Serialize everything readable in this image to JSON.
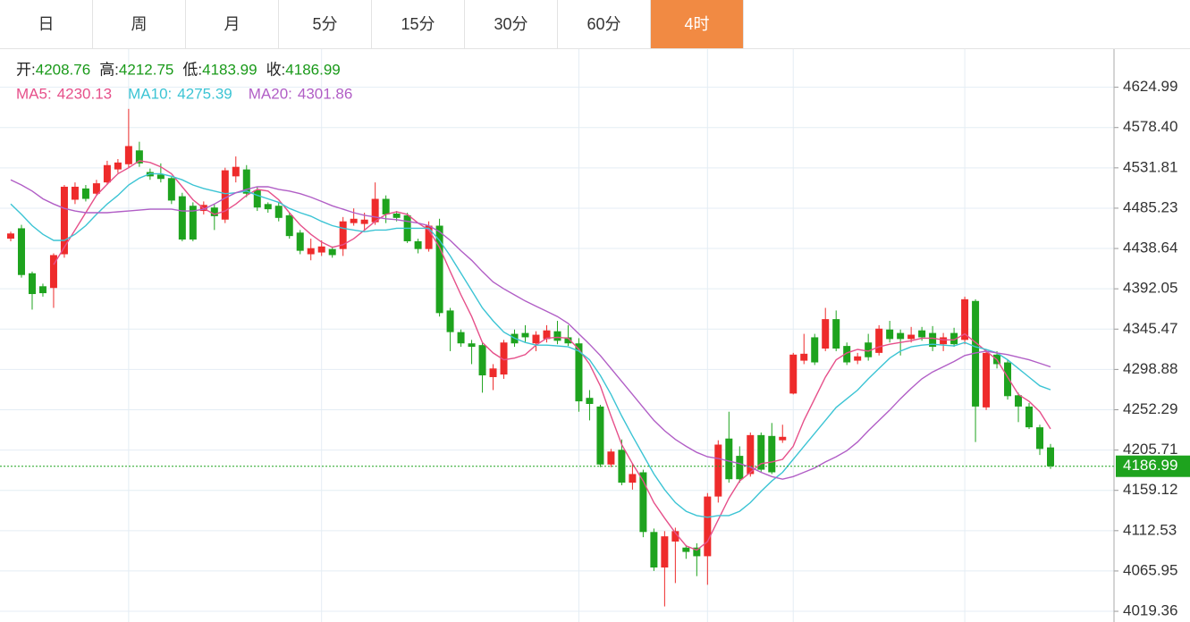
{
  "tabs": [
    "日",
    "周",
    "月",
    "5分",
    "15分",
    "30分",
    "60分",
    "4时"
  ],
  "active_tab": 7,
  "chart_data": {
    "type": "candlestick",
    "quote_labels": [
      "开:",
      "高:",
      "低:",
      "收:"
    ],
    "ma_labels": [
      "MA5:",
      "MA10:",
      "MA20:"
    ],
    "up_color": "#ee2b2b",
    "down_color": "#1ea31e",
    "quote_color": "#1a9a1a",
    "ylim": [
      4007,
      4669
    ],
    "yticks": [
      4019.36,
      4065.95,
      4112.53,
      4159.12,
      4205.71,
      4252.29,
      4298.88,
      4345.47,
      4392.05,
      4438.64,
      4485.23,
      4531.81,
      {
        "value": 4578.4,
        "label": "4578.40"
      },
      4624.99
    ],
    "grid": true,
    "candles": {
      "open": [
        4450,
        4462,
        4410,
        4395,
        4393,
        4432,
        4495,
        4508,
        4502,
        4515,
        4530,
        4536,
        4552,
        4527,
        4524,
        4520,
        4499,
        4488,
        4482,
        4486,
        4472,
        4522,
        4530,
        4506,
        4490,
        4488,
        4477,
        4457,
        4432,
        4434,
        4438,
        4438,
        4468,
        4467,
        4469,
        4496,
        4479,
        4477,
        4447,
        4438,
        4465,
        4367,
        4342,
        4329,
        4327,
        4290,
        4293,
        4340,
        4341,
        4329,
        4334,
        4343,
        4336,
        4329,
        4266,
        4256,
        4189,
        4206,
        4168,
        4180,
        4111,
        4070,
        4100,
        4093,
        4093,
        4083,
        4152,
        4219,
        4199,
        4178,
        4223,
        4222,
        4217,
        4271,
        4309,
        4336,
        4323,
        4357,
        4326,
        4309,
        4330,
        4318,
        4345,
        4341,
        4334,
        4344,
        4341,
        4328,
        4341,
        4333,
        4378,
        4255,
        4316,
        4307,
        4269,
        4256,
        4232,
        4208.76
      ],
      "high": [
        4458,
        4466,
        4412,
        4398,
        4433,
        4512,
        4515,
        4512,
        4518,
        4540,
        4542,
        4600,
        4562,
        4531,
        4537,
        4522,
        4503,
        4492,
        4493,
        4490,
        4532,
        4545,
        4535,
        4510,
        4492,
        4492,
        4480,
        4460,
        4450,
        4448,
        4441,
        4475,
        4485,
        4480,
        4515,
        4500,
        4482,
        4480,
        4450,
        4470,
        4473,
        4370,
        4345,
        4333,
        4330,
        4305,
        4333,
        4345,
        4350,
        4343,
        4350,
        4355,
        4350,
        4335,
        4275,
        4258,
        4207,
        4218,
        4190,
        4183,
        4115,
        4112,
        4116,
        4096,
        4098,
        4156,
        4217,
        4250,
        4210,
        4226,
        4226,
        4237,
        4235,
        4318,
        4340,
        4340,
        4370,
        4367,
        4330,
        4318,
        4340,
        4350,
        4355,
        4345,
        4348,
        4348,
        4349,
        4341,
        4347,
        4383,
        4380,
        4322,
        4320,
        4310,
        4272,
        4260,
        4235,
        4212.75
      ],
      "low": [
        4447,
        4405,
        4368,
        4383,
        4370,
        4428,
        4490,
        4493,
        4500,
        4512,
        4526,
        4532,
        4533,
        4518,
        4515,
        4490,
        4447,
        4447,
        4478,
        4460,
        4468,
        4515,
        4498,
        4482,
        4480,
        4470,
        4450,
        4432,
        4425,
        4430,
        4428,
        4430,
        4465,
        4460,
        4466,
        4468,
        4470,
        4445,
        4433,
        4435,
        4360,
        4320,
        4325,
        4305,
        4272,
        4275,
        4288,
        4325,
        4330,
        4320,
        4330,
        4328,
        4326,
        4250,
        4240,
        4186,
        4186,
        4165,
        4160,
        4105,
        4066,
        4025,
        4052,
        4080,
        4060,
        4050,
        4145,
        4168,
        4168,
        4175,
        4180,
        4178,
        4214,
        4270,
        4305,
        4304,
        4320,
        4320,
        4304,
        4305,
        4309,
        4315,
        4330,
        4315,
        4330,
        4332,
        4320,
        4320,
        4325,
        4328,
        4215,
        4252,
        4300,
        4264,
        4238,
        4230,
        4200,
        4183.99
      ],
      "close": [
        4456,
        4408,
        4386,
        4387,
        4431,
        4510,
        4510,
        4496,
        4514,
        4535,
        4538,
        4557,
        4537,
        4522,
        4519,
        4494,
        4449,
        4449,
        4489,
        4476,
        4529,
        4533,
        4502,
        4486,
        4484,
        4474,
        4453,
        4436,
        4439,
        4441,
        4431,
        4470,
        4473,
        4472,
        4496,
        4478,
        4474,
        4447,
        4438,
        4465,
        4364,
        4342,
        4329,
        4325,
        4292,
        4300,
        4330,
        4329,
        4336,
        4339,
        4344,
        4332,
        4329,
        4262,
        4259,
        4189,
        4204,
        4168,
        4178,
        4111,
        4070,
        4106,
        4112,
        4088,
        4083,
        4152,
        4212,
        4172,
        4172,
        4223,
        4183,
        4180,
        4221,
        4316,
        4317,
        4307,
        4357,
        4323,
        4307,
        4314,
        4313,
        4346,
        4334,
        4334,
        4339,
        4336,
        4325,
        4336,
        4328,
        4380,
        4256,
        4318,
        4305,
        4268,
        4256,
        4232,
        4207,
        4186.99
      ]
    },
    "series": [
      {
        "name": "MA5",
        "color": "#e6508a",
        "values": [
          null,
          null,
          null,
          null,
          4420,
          4440,
          4460,
          4480,
          4500,
          4513,
          4525,
          4532,
          4540,
          4538,
          4533,
          4525,
          4510,
          4495,
          4485,
          4478,
          4482,
          4490,
          4500,
          4507,
          4505,
          4495,
          4480,
          4466,
          4455,
          4446,
          4440,
          4443,
          4450,
          4460,
          4470,
          4478,
          4481,
          4478,
          4468,
          4460,
          4440,
          4412,
          4385,
          4360,
          4330,
          4318,
          4310,
          4312,
          4316,
          4327,
          4335,
          4336,
          4335,
          4322,
          4305,
          4280,
          4245,
          4212,
          4190,
          4170,
          4145,
          4127,
          4110,
          4095,
          4090,
          4100,
          4125,
          4150,
          4170,
          4180,
          4190,
          4192,
          4195,
          4210,
          4240,
          4265,
          4290,
          4310,
          4318,
          4322,
          4320,
          4325,
          4328,
          4330,
          4332,
          4335,
          4335,
          4333,
          4333,
          4340,
          4330,
          4320,
          4310,
          4290,
          4270,
          4262,
          4250,
          4230.13
        ]
      },
      {
        "name": "MA10",
        "color": "#3cc4d4",
        "values": [
          4490,
          4478,
          4465,
          4455,
          4448,
          4448,
          4455,
          4465,
          4478,
          4490,
          4500,
          4512,
          4520,
          4525,
          4525,
          4522,
          4518,
          4512,
          4508,
          4505,
          4502,
          4503,
          4505,
          4500,
          4496,
          4492,
          4485,
          4480,
          4476,
          4470,
          4465,
          4462,
          4460,
          4458,
          4460,
          4460,
          4462,
          4462,
          4462,
          4462,
          4448,
          4430,
          4410,
          4390,
          4370,
          4355,
          4342,
          4335,
          4330,
          4327,
          4327,
          4326,
          4325,
          4320,
          4310,
          4292,
          4270,
          4245,
          4222,
          4200,
          4178,
          4160,
          4145,
          4135,
          4130,
          4128,
          4130,
          4130,
          4135,
          4145,
          4158,
          4170,
          4180,
          4195,
          4210,
          4225,
          4240,
          4255,
          4265,
          4275,
          4288,
          4300,
          4312,
          4320,
          4325,
          4327,
          4328,
          4327,
          4326,
          4330,
          4325,
          4322,
          4318,
          4310,
          4300,
          4290,
          4280,
          4275.39
        ]
      },
      {
        "name": "MA20",
        "color": "#b15ec6",
        "values": [
          4518,
          4512,
          4505,
          4496,
          4490,
          4485,
          4482,
          4480,
          4480,
          4480,
          4481,
          4482,
          4483,
          4484,
          4484,
          4484,
          4482,
          4482,
          4484,
          4490,
          4497,
          4503,
          4507,
          4510,
          4510,
          4507,
          4505,
          4502,
          4498,
          4493,
          4488,
          4484,
          4480,
          4477,
          4475,
          4473,
          4472,
          4470,
          4468,
          4465,
          4458,
          4448,
          4436,
          4425,
          4412,
          4400,
          4392,
          4385,
          4378,
          4372,
          4366,
          4360,
          4352,
          4340,
          4328,
          4315,
          4300,
          4285,
          4270,
          4255,
          4240,
          4228,
          4218,
          4210,
          4203,
          4198,
          4196,
          4193,
          4190,
          4186,
          4180,
          4175,
          4172,
          4175,
          4180,
          4185,
          4192,
          4198,
          4205,
          4215,
          4228,
          4240,
          4252,
          4265,
          4277,
          4288,
          4296,
          4302,
          4308,
          4315,
          4318,
          4320,
          4318,
          4316,
          4313,
          4310,
          4306,
          4301.86
        ]
      }
    ]
  }
}
